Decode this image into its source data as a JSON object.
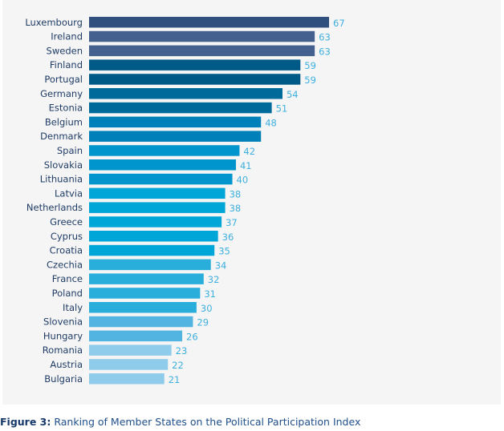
{
  "chart_data": {
    "type": "bar",
    "orientation": "horizontal",
    "categories": [
      "Luxembourg",
      "Ireland",
      "Sweden",
      "Finland",
      "Portugal",
      "Germany",
      "Estonia",
      "Belgium",
      "Denmark",
      "Spain",
      "Slovakia",
      "Lithuania",
      "Latvia",
      "Netherlands",
      "Greece",
      "Cyprus",
      "Croatia",
      "Czechia",
      "France",
      "Poland",
      "Italy",
      "Slovenia",
      "Hungary",
      "Romania",
      "Austria",
      "Bulgaria"
    ],
    "values": [
      67,
      63,
      63,
      59,
      59,
      54,
      51,
      48,
      48,
      42,
      41,
      40,
      38,
      38,
      37,
      36,
      35,
      34,
      32,
      31,
      30,
      29,
      26,
      23,
      22,
      21
    ],
    "data_labels": [
      "67",
      "63",
      "63",
      "59",
      "59",
      "54",
      "51",
      "48",
      "",
      "42",
      "41",
      "40",
      "38",
      "38",
      "37",
      "36",
      "35",
      "34",
      "32",
      "31",
      "30",
      "29",
      "26",
      "23",
      "22",
      "21"
    ],
    "colors": [
      "#2f4f7f",
      "#44608e",
      "#44608e",
      "#005a87",
      "#005a87",
      "#006b9a",
      "#006b9a",
      "#0080b8",
      "#0080b8",
      "#0095cc",
      "#0095cc",
      "#0095cc",
      "#00a6d8",
      "#00a6d8",
      "#00a6d8",
      "#00a6d8",
      "#00a6d8",
      "#29aedc",
      "#29aedc",
      "#29aedc",
      "#29aedc",
      "#52b4e0",
      "#52b4e0",
      "#8fcbea",
      "#8fcbea",
      "#8fcbea"
    ],
    "xlim": [
      0,
      67
    ],
    "grid": false,
    "legend": "none"
  },
  "caption": {
    "label": "Figure 3:",
    "text": " Ranking of Member States on the Political Participation Index"
  }
}
